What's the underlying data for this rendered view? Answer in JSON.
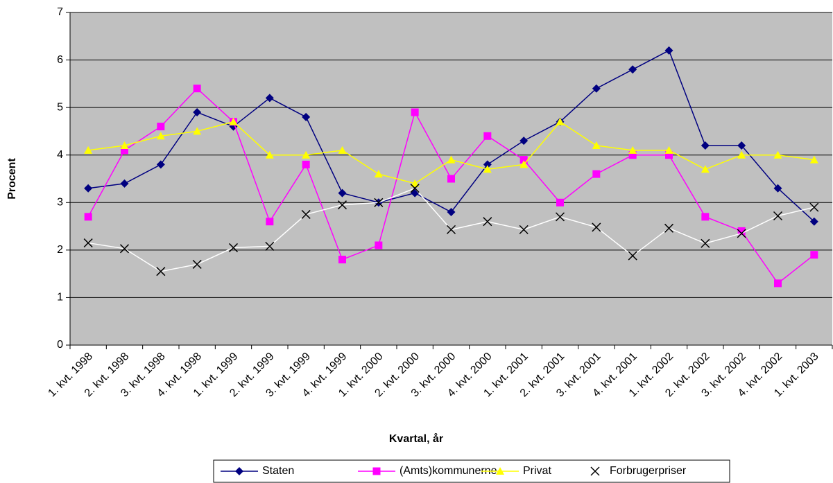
{
  "chart_data": {
    "type": "line",
    "x_label": "Kvartal, år",
    "y_label": "Procent",
    "categories": [
      "1. kvt. 1998",
      "2. kvt. 1998",
      "3. kvt. 1998",
      "4. kvt. 1998",
      "1. kvt. 1999",
      "2. kvt. 1999",
      "3. kvt. 1999",
      "4. kvt. 1999",
      "1. kvt. 2000",
      "2. kvt. 2000",
      "3. kvt. 2000",
      "4. kvt. 2000",
      "1. kvt. 2001",
      "2. kvt. 2001",
      "3. kvt. 2001",
      "4. kvt. 2001",
      "1. kvt. 2002",
      "2. kvt. 2002",
      "3. kvt. 2002",
      "4. kvt. 2002",
      "1. kvt. 2003"
    ],
    "series": [
      {
        "name": "Staten",
        "color": "#000080",
        "marker": "diamond",
        "marker_color": "#000080",
        "values": [
          3.3,
          3.4,
          3.8,
          4.9,
          4.6,
          5.2,
          4.8,
          3.2,
          3.0,
          3.2,
          2.8,
          3.8,
          4.3,
          4.7,
          5.4,
          5.8,
          6.2,
          4.2,
          4.2,
          3.3,
          2.6
        ]
      },
      {
        "name": "(Amts)kommunerne",
        "color": "#ff00ff",
        "marker": "square",
        "marker_color": "#ff00ff",
        "values": [
          2.7,
          4.1,
          4.6,
          5.4,
          4.7,
          2.6,
          3.8,
          1.8,
          2.1,
          4.9,
          3.5,
          4.4,
          3.9,
          3.0,
          3.6,
          4.0,
          4.0,
          2.7,
          2.4,
          1.3,
          1.9
        ]
      },
      {
        "name": "Privat",
        "color": "#ffff00",
        "marker": "triangle",
        "marker_color": "#ffff00",
        "values": [
          4.1,
          4.2,
          4.4,
          4.5,
          4.7,
          4.0,
          4.0,
          4.1,
          3.6,
          3.4,
          3.9,
          3.7,
          3.8,
          4.7,
          4.2,
          4.1,
          4.1,
          3.7,
          4.0,
          4.0,
          3.9
        ]
      },
      {
        "name": "Forbrugerpriser",
        "color": "#ffffff",
        "marker": "x",
        "marker_color": "#000000",
        "values": [
          2.15,
          2.03,
          1.55,
          1.7,
          2.05,
          2.08,
          2.75,
          2.95,
          3.0,
          3.3,
          2.43,
          2.6,
          2.43,
          2.7,
          2.48,
          1.88,
          2.46,
          2.14,
          2.35,
          2.72,
          2.9
        ]
      }
    ],
    "ylim": [
      0,
      7
    ],
    "yticks": [
      0,
      1,
      2,
      3,
      4,
      5,
      6,
      7
    ],
    "grid": true,
    "plot_background": "#c0c0c0",
    "legend": "bottom"
  }
}
